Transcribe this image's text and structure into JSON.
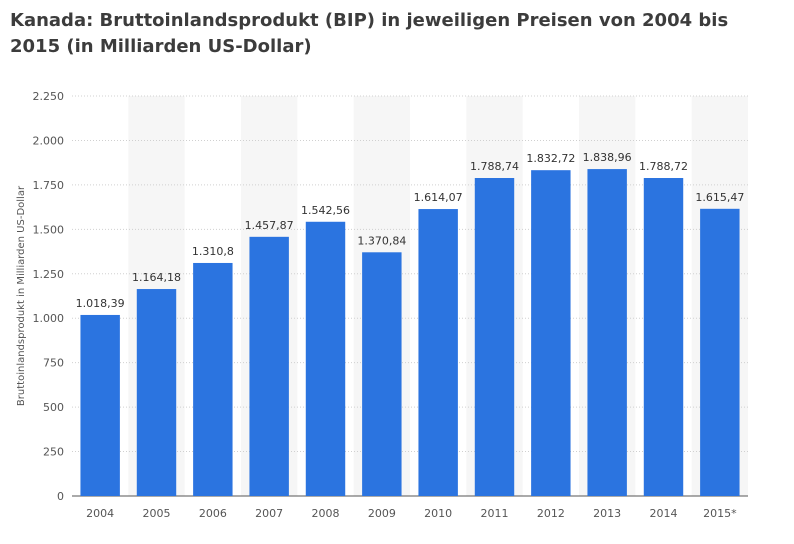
{
  "chart_data": {
    "type": "bar",
    "title": "Kanada: Bruttoinlandsprodukt (BIP) in jeweiligen Preisen von 2004 bis 2015 (in Milliarden US-Dollar)",
    "xlabel": "",
    "ylabel": "Bruttoinlandsprodukt in Milliarden US-Dollar",
    "categories": [
      "2004",
      "2005",
      "2006",
      "2007",
      "2008",
      "2009",
      "2010",
      "2011",
      "2012",
      "2013",
      "2014",
      "2015*"
    ],
    "values": [
      1018.39,
      1164.18,
      1310.8,
      1457.87,
      1542.56,
      1370.84,
      1614.07,
      1788.74,
      1832.72,
      1838.96,
      1788.72,
      1615.47
    ],
    "value_labels": [
      "1.018,39",
      "1.164,18",
      "1.310,8",
      "1.457,87",
      "1.542,56",
      "1.370,84",
      "1.614,07",
      "1.788,74",
      "1.832,72",
      "1.838,96",
      "1.788,72",
      "1.615,47"
    ],
    "ylim": [
      0,
      2250
    ],
    "yticks": [
      0,
      250,
      500,
      750,
      1000,
      1250,
      1500,
      1750,
      2000,
      2250
    ],
    "ytick_labels": [
      "0",
      "250",
      "500",
      "750",
      "1.000",
      "1.250",
      "1.500",
      "1.750",
      "2.000",
      "2.250"
    ],
    "grid": true,
    "legend": "none",
    "colors": {
      "bar": "#2b74e0",
      "band": "#f6f6f6",
      "grid": "#d0d0d0"
    }
  }
}
